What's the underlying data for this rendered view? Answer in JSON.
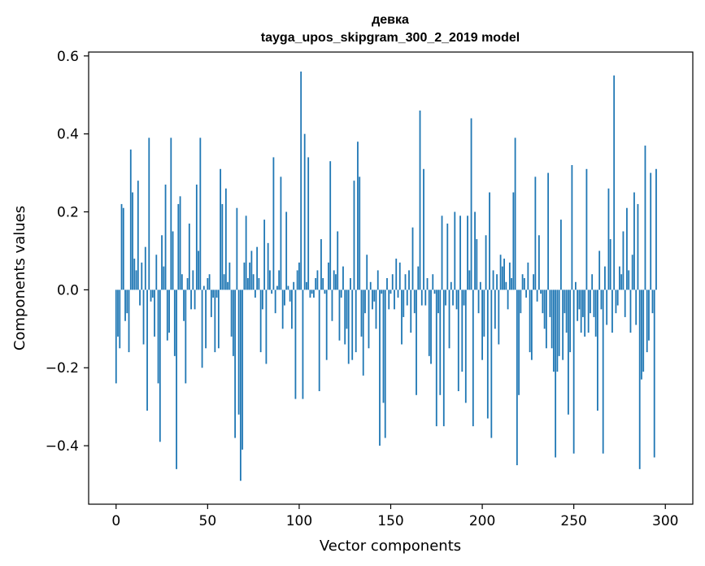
{
  "chart_data": {
    "type": "bar",
    "title": "девка",
    "subtitle": "tayga_upos_skipgram_300_2_2019 model",
    "xlabel": "Vector components",
    "ylabel": "Components values",
    "xlim": [
      -15,
      315
    ],
    "ylim": [
      -0.55,
      0.61
    ],
    "x_ticks": [
      0,
      50,
      100,
      150,
      200,
      250,
      300
    ],
    "x_tick_labels": [
      "0",
      "50",
      "100",
      "150",
      "200",
      "250",
      "300"
    ],
    "y_ticks": [
      -0.4,
      -0.2,
      0.0,
      0.2,
      0.4,
      0.6
    ],
    "y_tick_labels": [
      "−0.4",
      "−0.2",
      "0.0",
      "0.2",
      "0.4",
      "0.6"
    ],
    "bar_color": "#1f77b4",
    "values": [
      -0.24,
      -0.12,
      -0.15,
      0.22,
      0.21,
      -0.08,
      -0.06,
      -0.16,
      0.36,
      0.25,
      0.08,
      0.05,
      0.28,
      -0.04,
      0.07,
      -0.14,
      0.11,
      -0.31,
      0.39,
      -0.03,
      -0.02,
      -0.12,
      0.09,
      -0.24,
      -0.39,
      0.14,
      0.06,
      0.27,
      -0.13,
      -0.11,
      0.39,
      0.15,
      -0.17,
      -0.46,
      0.22,
      0.24,
      0.04,
      -0.08,
      -0.24,
      0.03,
      0.17,
      -0.05,
      0.05,
      -0.05,
      0.27,
      0.1,
      0.39,
      -0.2,
      0.01,
      -0.15,
      0.03,
      0.04,
      -0.07,
      -0.02,
      -0.16,
      -0.02,
      -0.15,
      0.31,
      0.22,
      0.04,
      0.26,
      0.02,
      0.07,
      -0.12,
      -0.17,
      -0.38,
      0.21,
      -0.32,
      -0.49,
      -0.41,
      0.07,
      0.19,
      0.03,
      0.07,
      0.1,
      0.04,
      -0.02,
      0.11,
      0.03,
      -0.16,
      -0.05,
      0.18,
      -0.19,
      0.12,
      0.05,
      -0.01,
      0.34,
      -0.06,
      0.01,
      0.05,
      0.29,
      -0.1,
      -0.04,
      0.2,
      0.01,
      -0.03,
      -0.1,
      0.02,
      -0.28,
      0.05,
      0.07,
      0.56,
      -0.28,
      0.4,
      0.02,
      0.34,
      -0.02,
      -0.01,
      -0.02,
      0.03,
      0.05,
      -0.26,
      0.13,
      0.03,
      -0.01,
      -0.18,
      0.07,
      0.33,
      -0.08,
      0.05,
      0.04,
      0.15,
      -0.13,
      -0.02,
      0.06,
      -0.14,
      -0.1,
      -0.19,
      0.03,
      -0.18,
      0.28,
      -0.16,
      0.38,
      0.29,
      -0.12,
      -0.22,
      -0.06,
      0.09,
      -0.15,
      0.02,
      -0.05,
      -0.03,
      -0.1,
      0.05,
      -0.4,
      -0.01,
      -0.29,
      -0.38,
      0.03,
      -0.05,
      -0.01,
      0.04,
      -0.05,
      0.08,
      -0.02,
      0.07,
      -0.14,
      -0.07,
      0.04,
      -0.04,
      0.05,
      -0.11,
      0.16,
      -0.06,
      -0.27,
      0.06,
      0.46,
      -0.04,
      0.31,
      -0.04,
      0.03,
      -0.17,
      -0.19,
      0.04,
      -0.01,
      -0.35,
      -0.06,
      -0.27,
      0.19,
      -0.35,
      -0.04,
      0.17,
      -0.15,
      0.02,
      -0.04,
      0.2,
      -0.05,
      -0.26,
      0.19,
      -0.21,
      -0.04,
      -0.29,
      0.19,
      0.05,
      0.44,
      -0.35,
      0.2,
      0.13,
      -0.06,
      0.02,
      -0.18,
      -0.12,
      0.14,
      -0.33,
      0.25,
      -0.38,
      0.05,
      -0.1,
      0.04,
      -0.14,
      0.09,
      0.06,
      0.08,
      0.02,
      -0.05,
      0.07,
      0.03,
      0.25,
      0.39,
      -0.45,
      -0.27,
      -0.06,
      0.04,
      0.03,
      -0.02,
      0.07,
      -0.16,
      -0.18,
      0.04,
      0.29,
      -0.03,
      0.14,
      -0.01,
      -0.06,
      -0.1,
      -0.15,
      0.3,
      -0.07,
      -0.15,
      -0.21,
      -0.43,
      -0.21,
      -0.17,
      0.18,
      -0.18,
      -0.06,
      -0.11,
      -0.32,
      -0.16,
      0.32,
      -0.42,
      0.02,
      -0.08,
      -0.05,
      -0.11,
      -0.07,
      -0.12,
      0.31,
      -0.11,
      -0.06,
      0.04,
      -0.07,
      -0.12,
      -0.31,
      0.1,
      -0.05,
      -0.42,
      0.06,
      -0.09,
      0.26,
      0.13,
      -0.11,
      0.55,
      -0.06,
      -0.04,
      0.06,
      0.04,
      0.15,
      -0.07,
      0.21,
      0.05,
      -0.11,
      0.09,
      0.25,
      -0.09,
      0.22,
      -0.46,
      -0.23,
      -0.21,
      0.37,
      -0.16,
      -0.13,
      0.3,
      -0.06,
      -0.43,
      0.31
    ]
  }
}
